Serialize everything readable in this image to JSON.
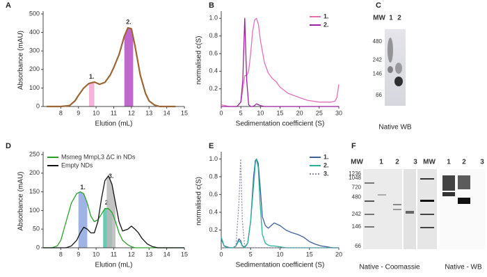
{
  "chart_data": [
    {
      "type": "line",
      "panel": "A",
      "xlabel": "Elution (mL)",
      "ylabel": "Absorbance (mAU)",
      "xlim": [
        7,
        15
      ],
      "xticks": [
        8,
        9,
        10,
        11,
        12,
        13,
        14,
        15
      ],
      "ylim": [
        0,
        500
      ],
      "yticks": [
        0,
        100,
        200,
        300,
        400,
        500
      ],
      "x": [
        7.2,
        8,
        8.5,
        8.8,
        9,
        9.3,
        9.6,
        9.9,
        10.2,
        10.5,
        10.8,
        11,
        11.3,
        11.6,
        11.8,
        12,
        12.2,
        12.5,
        12.8,
        13,
        13.3,
        13.6,
        14.5
      ],
      "series": [
        {
          "color": "#9c6535",
          "values": [
            0,
            0,
            5,
            30,
            60,
            100,
            125,
            132,
            120,
            130,
            170,
            210,
            280,
            380,
            425,
            420,
            330,
            170,
            70,
            30,
            8,
            0,
            0
          ],
          "regions": [
            {
              "label": "1.",
              "x": [
                9.6,
                9.9
              ],
              "color": "#f4a6d2"
            },
            {
              "label": "2.",
              "x": [
                11.6,
                12.1
              ],
              "color": "#b44cc4"
            }
          ]
        }
      ]
    },
    {
      "type": "line",
      "panel": "B",
      "xlabel": "Sedimentation coefficient (S)",
      "ylabel": "normalised c(S)",
      "legend": "upper right",
      "xlim": [
        0,
        30
      ],
      "xticks": [
        0,
        5,
        10,
        15,
        20,
        25,
        30
      ],
      "ylim": [
        0,
        1.05
      ],
      "yticks": [
        0.2,
        0.4,
        0.6,
        0.8,
        {
          "value": 1,
          "label": "1.0"
        }
      ],
      "x": [
        0,
        1,
        2,
        3,
        4,
        5,
        5.5,
        6,
        6.5,
        7,
        7.5,
        8,
        8.5,
        9,
        9.5,
        10,
        11,
        12,
        13,
        14,
        15,
        17,
        20,
        22,
        25,
        27,
        28,
        29,
        29.5,
        30
      ],
      "series": [
        {
          "name": "1.",
          "color": "#e36fb8",
          "values": [
            0.02,
            0.01,
            0,
            0,
            0,
            0.05,
            0.2,
            0.35,
            0.35,
            0.4,
            0.6,
            0.85,
            0.98,
            1.0,
            0.93,
            0.75,
            0.5,
            0.38,
            0.32,
            0.28,
            0.22,
            0.15,
            0.1,
            0.07,
            0.05,
            0.05,
            0.05,
            0.06,
            0.1,
            0.25
          ]
        },
        {
          "name": "2.",
          "color": "#9b1f9e",
          "values": [
            0,
            0,
            0,
            0,
            0,
            0.05,
            0.3,
            1.0,
            0.3,
            0.02,
            0,
            0,
            0.01,
            0.03,
            0.02,
            0.01,
            0,
            0,
            0,
            0,
            0,
            0,
            0,
            0,
            0,
            0,
            0,
            0,
            0,
            0
          ]
        }
      ]
    },
    {
      "type": "line",
      "panel": "D",
      "xlabel": "Elution (mL)",
      "ylabel": "Absorbance (mAU)",
      "legend": "upper left",
      "xlim": [
        7,
        15
      ],
      "xticks": [
        8,
        9,
        10,
        11,
        12,
        13,
        14,
        15
      ],
      "ylim": [
        0,
        250
      ],
      "yticks": [
        0,
        50,
        100,
        150,
        200,
        250
      ],
      "x": [
        7,
        7.5,
        7.8,
        8,
        8.3,
        8.6,
        8.9,
        9.1,
        9.3,
        9.5,
        9.7,
        9.9,
        10.1,
        10.3,
        10.5,
        10.7,
        10.9,
        11.1,
        11.3,
        11.5,
        11.8,
        12,
        12.2,
        12.4,
        12.6,
        12.9,
        13.2,
        13.5,
        14,
        15
      ],
      "series": [
        {
          "name": "Msmeg MmpL3 ΔC in NDs",
          "color": "#2aa02a",
          "values": [
            0,
            0,
            5,
            20,
            70,
            120,
            145,
            150,
            145,
            120,
            85,
            70,
            75,
            90,
            105,
            105,
            95,
            70,
            40,
            20,
            8,
            3,
            0,
            0,
            0,
            0,
            0,
            0,
            0,
            0
          ],
          "regions": [
            {
              "label": "1.",
              "x": [
                9.0,
                9.5
              ],
              "color": "#8fa6e0"
            },
            {
              "label": "2.",
              "x": [
                10.4,
                10.9
              ],
              "color": "#4cc2a8"
            }
          ]
        },
        {
          "name": "Empty NDs",
          "color": "#111111",
          "values": [
            0,
            0,
            0,
            0,
            0,
            5,
            20,
            40,
            55,
            50,
            40,
            40,
            70,
            130,
            180,
            193,
            170,
            120,
            70,
            45,
            50,
            58,
            50,
            40,
            25,
            10,
            3,
            0,
            0,
            0
          ],
          "regions": [
            {
              "label": "3.",
              "x": [
                10.6,
                11.1
              ],
              "color": "#b8b8b8"
            }
          ]
        }
      ]
    },
    {
      "type": "line",
      "panel": "E",
      "xlabel": "Sedimentation coefficient (S)",
      "ylabel": "normalised c(S)",
      "legend": "upper right",
      "xlim": [
        0,
        20
      ],
      "xticks": [
        0,
        5,
        10,
        15,
        20
      ],
      "ylim": [
        0,
        1.05
      ],
      "yticks": [
        0.2,
        0.4,
        0.6,
        0.8,
        {
          "value": 1,
          "label": "1.0"
        }
      ],
      "x": [
        0,
        0.5,
        1,
        1.5,
        2,
        2.5,
        3,
        3.3,
        3.6,
        4,
        4.5,
        5,
        5.5,
        5.8,
        6,
        6.3,
        6.6,
        7,
        7.5,
        8,
        8.5,
        9,
        10,
        11,
        12,
        13,
        14,
        15,
        16,
        17,
        18,
        19,
        20
      ],
      "series": [
        {
          "name": "1.",
          "color": "#3f5f9e",
          "values": [
            0.1,
            0.02,
            0.01,
            0,
            0,
            0.02,
            0.1,
            0.08,
            0.02,
            0.01,
            0.05,
            0.3,
            0.8,
            0.98,
            1.0,
            0.95,
            0.7,
            0.35,
            0.25,
            0.22,
            0.25,
            0.28,
            0.25,
            0.2,
            0.17,
            0.15,
            0.12,
            0.07,
            0.04,
            0.02,
            0.01,
            0,
            0
          ]
        },
        {
          "name": "2.",
          "color": "#2ab09a",
          "values": [
            0.12,
            0.02,
            0,
            0,
            0,
            0.02,
            0.08,
            0.06,
            0.02,
            0,
            0.05,
            0.3,
            0.7,
            0.95,
            1.0,
            0.9,
            0.5,
            0.15,
            0.05,
            0.03,
            0.02,
            0.02,
            0.01,
            0,
            0,
            0,
            0,
            0,
            0,
            0,
            0,
            0,
            0
          ]
        },
        {
          "name": "3.",
          "color": "#8a8aa8",
          "dashed": true,
          "values": [
            0,
            0,
            0,
            0,
            0,
            0.02,
            0.5,
            1.0,
            0.3,
            0,
            0,
            0,
            0,
            0,
            0,
            0,
            0,
            0,
            0,
            0,
            0,
            0,
            0,
            0,
            0,
            0,
            0,
            0,
            0,
            0,
            0,
            0,
            0
          ]
        }
      ]
    }
  ],
  "gels": [
    {
      "panel": "C",
      "lanes": [
        "MW",
        "1",
        "2"
      ],
      "lane_colors": [
        "#333333",
        "#e36fb8",
        "#9b1f9e"
      ],
      "mw": [
        480,
        242,
        146,
        66
      ],
      "captions": [
        "Native WB"
      ]
    },
    {
      "panel": "F",
      "lanes": [
        "MW",
        "1",
        "2",
        "3",
        "MW",
        "1",
        "2",
        "3"
      ],
      "lane_colors": [
        "#333333",
        "#3f5f9e",
        "#2aa02a",
        "#999999",
        "#333333",
        "#3f5f9e",
        "#2aa02a",
        "#999999"
      ],
      "mw": [
        1236,
        1048,
        720,
        480,
        242,
        146,
        66
      ],
      "captions": [
        "Native - Coomassie",
        "Native - WB"
      ]
    }
  ]
}
